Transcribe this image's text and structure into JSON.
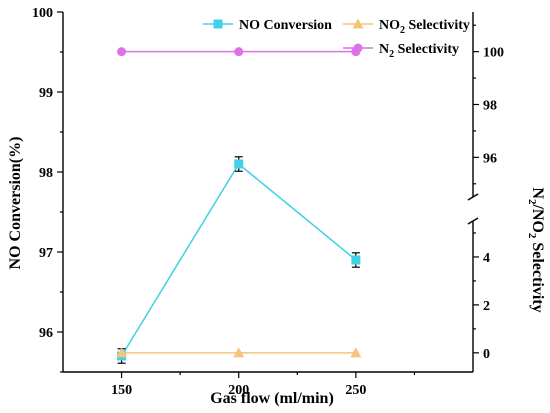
{
  "chart_data": {
    "type": "line",
    "x_label": "Gas flow (ml/min)",
    "y_label": "NO Conversion(%)",
    "y2_label": "N2/NO2 Selectivity",
    "x": [
      150,
      200,
      250
    ],
    "x_ticks": [
      "150",
      "200",
      "250"
    ],
    "y_ticks": [
      "96",
      "97",
      "98",
      "99",
      "100"
    ],
    "y2_upper_ticks": [
      "96",
      "98",
      "100"
    ],
    "y2_lower_ticks": [
      "0",
      "2",
      "4"
    ],
    "y_range": [
      95.5,
      100
    ],
    "y2_upper_range": [
      94.5,
      101.5
    ],
    "y2_lower_range": [
      -0.8,
      5.5
    ],
    "axis_break": "right axis broken between 4 and 96",
    "legend_placement": "top-right",
    "series": [
      {
        "name": "NO Conversion",
        "axis": "left",
        "color": "#40d0e8",
        "marker": "square",
        "values": [
          95.7,
          98.1,
          96.9
        ],
        "errors": [
          0.09,
          0.09,
          0.09
        ]
      },
      {
        "name": "NO2 Selectivity",
        "axis": "right-lower",
        "color": "#f5c47a",
        "marker": "triangle",
        "values": [
          0,
          0,
          0
        ]
      },
      {
        "name": "N2 Selectivity",
        "axis": "right-upper",
        "color": "#e070e6",
        "marker": "circle",
        "values": [
          100,
          100,
          100
        ]
      }
    ]
  }
}
